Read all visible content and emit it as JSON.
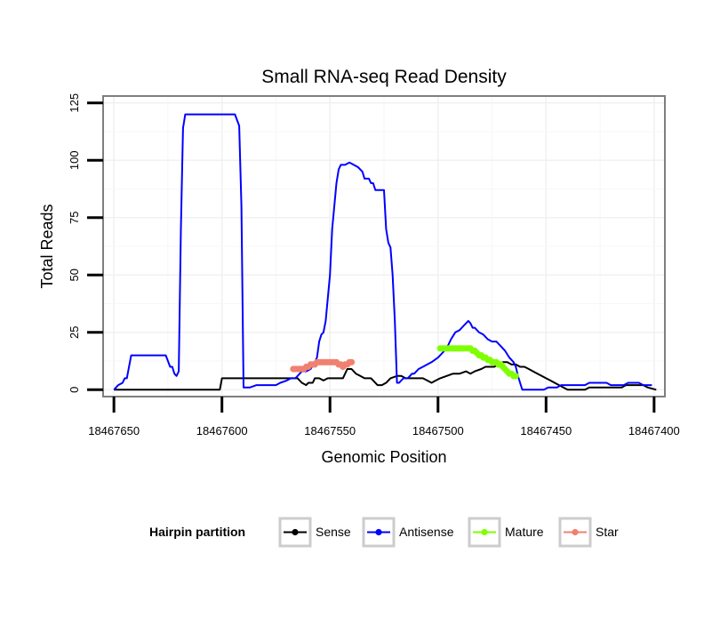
{
  "chart_data": {
    "type": "line",
    "title": "Small RNA-seq Read Density",
    "xlabel": "Genomic Position",
    "ylabel": "Total Reads",
    "xlim": [
      18467655,
      18467395
    ],
    "ylim": [
      -3,
      128
    ],
    "x_reversed": true,
    "grid": true,
    "x_ticks": [
      18467650,
      18467600,
      18467550,
      18467500,
      18467450,
      18467400
    ],
    "x_tick_labels": [
      "18467650",
      "18467600",
      "18467550",
      "18467500",
      "18467450",
      "18467400"
    ],
    "y_ticks": [
      0,
      25,
      50,
      75,
      100,
      125
    ],
    "y_tick_labels": [
      "0",
      "25",
      "50",
      "75",
      "100",
      "125"
    ],
    "legend": {
      "title": "Hairpin partition",
      "placement": "bottom",
      "entries": [
        {
          "label": "Sense",
          "color": "#000000"
        },
        {
          "label": "Antisense",
          "color": "#0000ff"
        },
        {
          "label": "Mature",
          "color": "#7fff00"
        },
        {
          "label": "Star",
          "color": "#f08070"
        }
      ]
    },
    "series": [
      {
        "name": "Sense",
        "color": "#000000",
        "markers": false,
        "points": [
          [
            18467650,
            0
          ],
          [
            18467601,
            0
          ],
          [
            18467600,
            5
          ],
          [
            18467590,
            5
          ],
          [
            18467576,
            5
          ],
          [
            18467565,
            5
          ],
          [
            18467563,
            3
          ],
          [
            18467561,
            2
          ],
          [
            18467560,
            3
          ],
          [
            18467558,
            3
          ],
          [
            18467557,
            5
          ],
          [
            18467555,
            5
          ],
          [
            18467553,
            4
          ],
          [
            18467551,
            5
          ],
          [
            18467544,
            5
          ],
          [
            18467542,
            9
          ],
          [
            18467540,
            9
          ],
          [
            18467538,
            7
          ],
          [
            18467536,
            6
          ],
          [
            18467534,
            5
          ],
          [
            18467531,
            5
          ],
          [
            18467530,
            4
          ],
          [
            18467528,
            2
          ],
          [
            18467526,
            2
          ],
          [
            18467524,
            3
          ],
          [
            18467522,
            5
          ],
          [
            18467519,
            6
          ],
          [
            18467517,
            6
          ],
          [
            18467515,
            5
          ],
          [
            18467513,
            5
          ],
          [
            18467509,
            5
          ],
          [
            18467507,
            5
          ],
          [
            18467505,
            4
          ],
          [
            18467503,
            3
          ],
          [
            18467501,
            4
          ],
          [
            18467499,
            5
          ],
          [
            18467496,
            6
          ],
          [
            18467493,
            7
          ],
          [
            18467490,
            7
          ],
          [
            18467487,
            8
          ],
          [
            18467485,
            7
          ],
          [
            18467483,
            8
          ],
          [
            18467480,
            9
          ],
          [
            18467478,
            10
          ],
          [
            18467476,
            10
          ],
          [
            18467474,
            10
          ],
          [
            18467472,
            11
          ],
          [
            18467470,
            12
          ],
          [
            18467468,
            12
          ],
          [
            18467466,
            11
          ],
          [
            18467464,
            11
          ],
          [
            18467462,
            10
          ],
          [
            18467460,
            10
          ],
          [
            18467458,
            9
          ],
          [
            18467456,
            8
          ],
          [
            18467454,
            7
          ],
          [
            18467452,
            6
          ],
          [
            18467450,
            5
          ],
          [
            18467448,
            4
          ],
          [
            18467446,
            3
          ],
          [
            18467444,
            2
          ],
          [
            18467442,
            1
          ],
          [
            18467440,
            0
          ],
          [
            18467432,
            0
          ],
          [
            18467430,
            1
          ],
          [
            18467415,
            1
          ],
          [
            18467413,
            2
          ],
          [
            18467405,
            2
          ],
          [
            18467403,
            1
          ],
          [
            18467399,
            0
          ]
        ]
      },
      {
        "name": "Antisense",
        "color": "#0000ff",
        "markers": false,
        "points": [
          [
            18467650,
            0
          ],
          [
            18467648,
            2
          ],
          [
            18467646,
            3
          ],
          [
            18467645,
            5
          ],
          [
            18467644,
            5
          ],
          [
            18467642,
            15
          ],
          [
            18467632,
            15
          ],
          [
            18467626,
            15
          ],
          [
            18467624,
            10
          ],
          [
            18467623,
            10
          ],
          [
            18467622,
            7
          ],
          [
            18467621,
            6
          ],
          [
            18467620,
            8
          ],
          [
            18467619,
            70
          ],
          [
            18467618,
            114
          ],
          [
            18467617,
            120
          ],
          [
            18467605,
            120
          ],
          [
            18467594,
            120
          ],
          [
            18467592,
            115
          ],
          [
            18467591,
            80
          ],
          [
            18467590,
            1
          ],
          [
            18467587,
            1
          ],
          [
            18467584,
            2
          ],
          [
            18467575,
            2
          ],
          [
            18467573,
            3
          ],
          [
            18467570,
            4
          ],
          [
            18467568,
            5
          ],
          [
            18467566,
            5
          ],
          [
            18467565,
            6
          ],
          [
            18467564,
            7
          ],
          [
            18467563,
            8
          ],
          [
            18467561,
            8
          ],
          [
            18467559,
            9
          ],
          [
            18467557,
            12
          ],
          [
            18467556,
            14
          ],
          [
            18467555,
            21
          ],
          [
            18467554,
            24
          ],
          [
            18467553,
            25
          ],
          [
            18467552,
            30
          ],
          [
            18467550,
            50
          ],
          [
            18467549,
            70
          ],
          [
            18467547,
            90
          ],
          [
            18467546,
            96
          ],
          [
            18467545,
            98
          ],
          [
            18467543,
            98
          ],
          [
            18467541,
            99
          ],
          [
            18467539,
            98
          ],
          [
            18467537,
            97
          ],
          [
            18467535,
            95
          ],
          [
            18467534,
            92
          ],
          [
            18467532,
            92
          ],
          [
            18467531,
            90
          ],
          [
            18467530,
            90
          ],
          [
            18467529,
            87
          ],
          [
            18467525,
            87
          ],
          [
            18467524,
            70
          ],
          [
            18467523,
            64
          ],
          [
            18467522,
            62
          ],
          [
            18467521,
            50
          ],
          [
            18467520,
            30
          ],
          [
            18467519,
            3
          ],
          [
            18467518,
            3
          ],
          [
            18467517,
            4
          ],
          [
            18467516,
            5
          ],
          [
            18467514,
            5
          ],
          [
            18467513,
            6
          ],
          [
            18467512,
            7
          ],
          [
            18467511,
            7
          ],
          [
            18467510,
            8
          ],
          [
            18467509,
            9
          ],
          [
            18467507,
            10
          ],
          [
            18467505,
            11
          ],
          [
            18467503,
            12
          ],
          [
            18467500,
            14
          ],
          [
            18467498,
            16
          ],
          [
            18467496,
            18
          ],
          [
            18467494,
            22
          ],
          [
            18467492,
            25
          ],
          [
            18467490,
            26
          ],
          [
            18467488,
            28
          ],
          [
            18467487,
            29
          ],
          [
            18467486,
            30
          ],
          [
            18467485,
            29
          ],
          [
            18467484,
            27
          ],
          [
            18467483,
            27
          ],
          [
            18467481,
            25
          ],
          [
            18467479,
            24
          ],
          [
            18467477,
            22
          ],
          [
            18467475,
            21
          ],
          [
            18467473,
            21
          ],
          [
            18467471,
            19
          ],
          [
            18467469,
            17
          ],
          [
            18467467,
            14
          ],
          [
            18467465,
            12
          ],
          [
            18467464,
            10
          ],
          [
            18467463,
            6
          ],
          [
            18467462,
            3
          ],
          [
            18467461,
            0
          ],
          [
            18467453,
            0
          ],
          [
            18467451,
            0
          ],
          [
            18467449,
            1
          ],
          [
            18467445,
            1
          ],
          [
            18467443,
            2
          ],
          [
            18467432,
            2
          ],
          [
            18467430,
            3
          ],
          [
            18467422,
            3
          ],
          [
            18467420,
            2
          ],
          [
            18467414,
            2
          ],
          [
            18467412,
            3
          ],
          [
            18467407,
            3
          ],
          [
            18467405,
            2
          ],
          [
            18467401,
            2
          ]
        ]
      },
      {
        "name": "Mature",
        "color": "#7fff00",
        "markers": true,
        "points": [
          [
            18467499,
            18
          ],
          [
            18467498,
            18
          ],
          [
            18467497,
            18
          ],
          [
            18467496,
            18
          ],
          [
            18467495,
            18
          ],
          [
            18467494,
            18
          ],
          [
            18467493,
            18
          ],
          [
            18467492,
            18
          ],
          [
            18467491,
            18
          ],
          [
            18467490,
            18
          ],
          [
            18467489,
            18
          ],
          [
            18467488,
            18
          ],
          [
            18467487,
            18
          ],
          [
            18467486,
            18
          ],
          [
            18467485,
            18
          ],
          [
            18467484,
            17
          ],
          [
            18467483,
            17
          ],
          [
            18467482,
            16
          ],
          [
            18467481,
            15
          ],
          [
            18467480,
            15
          ],
          [
            18467479,
            14
          ],
          [
            18467478,
            14
          ],
          [
            18467477,
            13
          ],
          [
            18467476,
            13
          ],
          [
            18467475,
            12
          ],
          [
            18467474,
            12
          ],
          [
            18467473,
            12
          ],
          [
            18467472,
            11
          ],
          [
            18467471,
            11
          ],
          [
            18467470,
            10
          ],
          [
            18467469,
            9
          ],
          [
            18467468,
            8
          ],
          [
            18467467,
            7
          ],
          [
            18467466,
            7
          ],
          [
            18467465,
            6
          ],
          [
            18467464,
            6
          ]
        ]
      },
      {
        "name": "Star",
        "color": "#f08070",
        "markers": true,
        "points": [
          [
            18467567,
            9
          ],
          [
            18467566,
            9
          ],
          [
            18467565,
            9
          ],
          [
            18467564,
            9
          ],
          [
            18467563,
            9
          ],
          [
            18467562,
            9
          ],
          [
            18467561,
            10
          ],
          [
            18467560,
            10
          ],
          [
            18467559,
            11
          ],
          [
            18467558,
            11
          ],
          [
            18467557,
            11
          ],
          [
            18467556,
            12
          ],
          [
            18467555,
            12
          ],
          [
            18467554,
            12
          ],
          [
            18467553,
            12
          ],
          [
            18467552,
            12
          ],
          [
            18467551,
            12
          ],
          [
            18467550,
            12
          ],
          [
            18467549,
            12
          ],
          [
            18467548,
            12
          ],
          [
            18467547,
            12
          ],
          [
            18467546,
            11
          ],
          [
            18467545,
            11
          ],
          [
            18467544,
            10
          ],
          [
            18467543,
            11
          ],
          [
            18467542,
            11
          ],
          [
            18467541,
            12
          ],
          [
            18467540,
            12
          ]
        ]
      }
    ]
  }
}
